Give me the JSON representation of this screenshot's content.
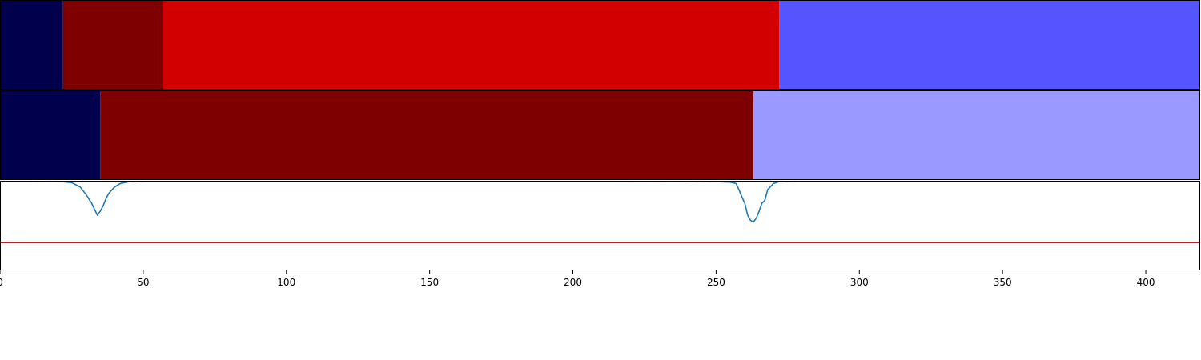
{
  "chart_data": [
    {
      "type": "bar",
      "orientation": "horizontal-segments",
      "panel": "top",
      "segments": [
        {
          "start": 0,
          "end": 22,
          "color": "#00004c"
        },
        {
          "start": 22,
          "end": 57,
          "color": "#7f0000"
        },
        {
          "start": 57,
          "end": 272,
          "color": "#d20000"
        },
        {
          "start": 272,
          "end": 419,
          "color": "#5555ff"
        }
      ],
      "xlim": [
        0,
        419
      ]
    },
    {
      "type": "bar",
      "orientation": "horizontal-segments",
      "panel": "middle",
      "segments": [
        {
          "start": 0,
          "end": 35,
          "color": "#00004c"
        },
        {
          "start": 35,
          "end": 263,
          "color": "#7f0000"
        },
        {
          "start": 263,
          "end": 419,
          "color": "#9999ff"
        }
      ],
      "xlim": [
        0,
        419
      ]
    },
    {
      "type": "line",
      "panel": "bottom",
      "xlim": [
        0,
        419
      ],
      "ylim": [
        0,
        1
      ],
      "x_ticks": [
        0,
        50,
        100,
        150,
        200,
        250,
        300,
        350,
        400
      ],
      "x_tick_labels": [
        "0",
        "50",
        "100",
        "150",
        "200",
        "250",
        "300",
        "350",
        "400"
      ],
      "series": [
        {
          "color": "#1f77b4",
          "x": [
            0,
            20,
            25,
            28,
            30,
            32,
            33,
            34,
            35,
            36,
            37,
            38,
            40,
            42,
            45,
            50,
            55,
            60,
            200,
            240,
            250,
            255,
            257,
            258,
            259,
            260,
            261,
            262,
            263,
            264,
            265,
            266,
            267,
            268,
            270,
            272,
            275,
            280,
            290,
            419
          ],
          "y": [
            1.0,
            0.995,
            0.98,
            0.93,
            0.85,
            0.75,
            0.68,
            0.62,
            0.66,
            0.72,
            0.8,
            0.86,
            0.93,
            0.97,
            0.99,
            0.997,
            1.0,
            1.0,
            1.0,
            0.995,
            0.99,
            0.985,
            0.97,
            0.9,
            0.82,
            0.75,
            0.62,
            0.56,
            0.54,
            0.58,
            0.66,
            0.75,
            0.78,
            0.9,
            0.97,
            0.99,
            0.995,
            1.0,
            1.0,
            1.0
          ]
        },
        {
          "color": "#ff0000",
          "x": [
            0,
            419
          ],
          "y": [
            0.31,
            0.31
          ]
        }
      ]
    }
  ]
}
